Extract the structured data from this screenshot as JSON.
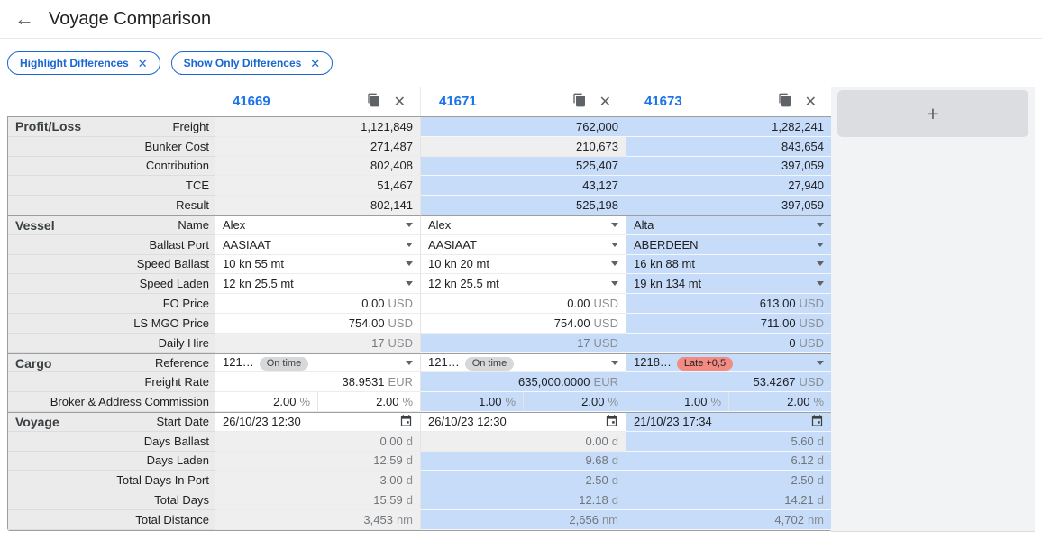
{
  "header": {
    "back_icon": "←",
    "title": "Voyage Comparison"
  },
  "filters": {
    "remove_icon": "✕",
    "chips": [
      {
        "label": "Highlight Differences"
      },
      {
        "label": "Show Only Differences"
      }
    ]
  },
  "colors": {
    "accent_blue": "#1a73e8",
    "chip_blue": "#1967d2",
    "highlight_blue": "#c7dcf8",
    "readonly_gray": "#efefef",
    "label_column_gray": "#ebebeb",
    "border_dark": "#9e9e9e",
    "badge_on_time_bg": "#d6d8d9",
    "badge_late_bg": "#f28b82"
  },
  "comparison": {
    "add_label": "+",
    "close_icon": "✕",
    "columns": [
      {
        "id": "41669"
      },
      {
        "id": "41671"
      },
      {
        "id": "41673"
      }
    ],
    "sections": [
      {
        "name": "Profit/Loss",
        "rows": [
          {
            "label": "Freight",
            "kind": "num",
            "cells": [
              {
                "v": "1,121,849",
                "dim": true
              },
              {
                "v": "762,000",
                "hl": true
              },
              {
                "v": "1,282,241",
                "hl": true
              }
            ]
          },
          {
            "label": "Bunker Cost",
            "kind": "num",
            "cells": [
              {
                "v": "271,487",
                "dim": true
              },
              {
                "v": "210,673",
                "dim": true
              },
              {
                "v": "843,654",
                "hl": true
              }
            ]
          },
          {
            "label": "Contribution",
            "kind": "num",
            "cells": [
              {
                "v": "802,408",
                "dim": true
              },
              {
                "v": "525,407",
                "hl": true
              },
              {
                "v": "397,059",
                "hl": true
              }
            ]
          },
          {
            "label": "TCE",
            "kind": "num",
            "cells": [
              {
                "v": "51,467",
                "dim": true
              },
              {
                "v": "43,127",
                "hl": true
              },
              {
                "v": "27,940",
                "hl": true
              }
            ]
          },
          {
            "label": "Result",
            "kind": "num",
            "cells": [
              {
                "v": "802,141",
                "dim": true
              },
              {
                "v": "525,198",
                "hl": true
              },
              {
                "v": "397,059",
                "hl": true
              }
            ]
          }
        ]
      },
      {
        "name": "Vessel",
        "rows": [
          {
            "label": "Name",
            "kind": "select",
            "cells": [
              {
                "v": "Alex"
              },
              {
                "v": "Alex"
              },
              {
                "v": "Alta",
                "hl": true
              }
            ]
          },
          {
            "label": "Ballast Port",
            "kind": "select",
            "cells": [
              {
                "v": "AASIAAT"
              },
              {
                "v": "AASIAAT"
              },
              {
                "v": "ABERDEEN",
                "hl": true
              }
            ]
          },
          {
            "label": "Speed Ballast",
            "kind": "select",
            "cells": [
              {
                "v": "10 kn 55 mt"
              },
              {
                "v": "10 kn 20 mt"
              },
              {
                "v": "16 kn 88 mt",
                "hl": true
              }
            ]
          },
          {
            "label": "Speed Laden",
            "kind": "select",
            "cells": [
              {
                "v": "12 kn 25.5 mt"
              },
              {
                "v": "12 kn 25.5 mt"
              },
              {
                "v": "19 kn 134 mt",
                "hl": true
              }
            ]
          },
          {
            "label": "FO Price",
            "kind": "input",
            "unit": "USD",
            "cells": [
              {
                "v": "0.00"
              },
              {
                "v": "0.00"
              },
              {
                "v": "613.00",
                "hl": true
              }
            ]
          },
          {
            "label": "LS MGO Price",
            "kind": "input",
            "unit": "USD",
            "cells": [
              {
                "v": "754.00"
              },
              {
                "v": "754.00"
              },
              {
                "v": "711.00",
                "hl": true
              }
            ]
          },
          {
            "label": "Daily Hire",
            "kind": "num",
            "unit": "USD",
            "cells": [
              {
                "v": "17",
                "dim": true,
                "muted": true
              },
              {
                "v": "17",
                "hl": true,
                "muted": true
              },
              {
                "v": "0",
                "hl": true
              }
            ]
          }
        ]
      },
      {
        "name": "Cargo",
        "rows": [
          {
            "label": "Reference",
            "kind": "ref",
            "cells": [
              {
                "v": "121…",
                "badge": {
                  "t": "On time",
                  "k": "ok"
                }
              },
              {
                "v": "121…",
                "badge": {
                  "t": "On time",
                  "k": "ok"
                }
              },
              {
                "v": "1218…",
                "badge": {
                  "t": "Late +0,5",
                  "k": "late"
                },
                "hl": true
              }
            ]
          },
          {
            "label": "Freight Rate",
            "kind": "input",
            "cells": [
              {
                "v": "38.9531",
                "unit": "EUR"
              },
              {
                "v": "635,000.0000",
                "unit": "EUR",
                "hl": true
              },
              {
                "v": "53.4267",
                "unit": "USD",
                "hl": true
              }
            ]
          },
          {
            "label": "Broker & Address Commission",
            "kind": "pair",
            "unit": "%",
            "cells": [
              {
                "v": [
                  "2.00",
                  "2.00"
                ]
              },
              {
                "v": [
                  "1.00",
                  "2.00"
                ],
                "hl": true
              },
              {
                "v": [
                  "1.00",
                  "2.00"
                ],
                "hl": true
              }
            ]
          }
        ]
      },
      {
        "name": "Voyage",
        "rows": [
          {
            "label": "Start Date",
            "kind": "date",
            "cells": [
              {
                "v": "26/10/23 12:30"
              },
              {
                "v": "26/10/23 12:30"
              },
              {
                "v": "21/10/23 17:34",
                "hl": true
              }
            ]
          },
          {
            "label": "Days Ballast",
            "kind": "num",
            "unit": "d",
            "cells": [
              {
                "v": "0.00",
                "dim": true,
                "muted": true
              },
              {
                "v": "0.00",
                "dim": true,
                "muted": true
              },
              {
                "v": "5.60",
                "hl": true,
                "muted": true
              }
            ]
          },
          {
            "label": "Days Laden",
            "kind": "num",
            "unit": "d",
            "cells": [
              {
                "v": "12.59",
                "dim": true,
                "muted": true
              },
              {
                "v": "9.68",
                "hl": true,
                "muted": true
              },
              {
                "v": "6.12",
                "hl": true,
                "muted": true
              }
            ]
          },
          {
            "label": "Total Days In Port",
            "kind": "num",
            "unit": "d",
            "cells": [
              {
                "v": "3.00",
                "dim": true,
                "muted": true
              },
              {
                "v": "2.50",
                "hl": true,
                "muted": true
              },
              {
                "v": "2.50",
                "hl": true,
                "muted": true
              }
            ]
          },
          {
            "label": "Total Days",
            "kind": "num",
            "unit": "d",
            "cells": [
              {
                "v": "15.59",
                "dim": true,
                "muted": true
              },
              {
                "v": "12.18",
                "hl": true,
                "muted": true
              },
              {
                "v": "14.21",
                "hl": true,
                "muted": true
              }
            ]
          },
          {
            "label": "Total Distance",
            "kind": "num",
            "unit": "nm",
            "cells": [
              {
                "v": "3,453",
                "dim": true,
                "muted": true
              },
              {
                "v": "2,656",
                "hl": true,
                "muted": true
              },
              {
                "v": "4,702",
                "hl": true,
                "muted": true
              }
            ]
          }
        ]
      }
    ]
  }
}
